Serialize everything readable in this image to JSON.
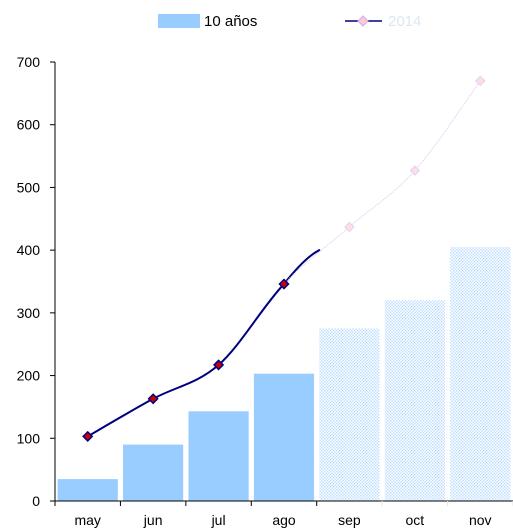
{
  "chart_data": {
    "type": "bar",
    "categories": [
      "may",
      "jun",
      "jul",
      "ago",
      "sep",
      "oct",
      "nov"
    ],
    "ylim": [
      0,
      700
    ],
    "yticks": [
      0,
      100,
      200,
      300,
      400,
      500,
      600,
      700
    ],
    "grid": false,
    "legend_position": "top",
    "series": [
      {
        "name": "10 años",
        "kind": "bar",
        "color": "#99ccff",
        "values": [
          35,
          90,
          143,
          203,
          275,
          320,
          405
        ]
      },
      {
        "name": "2014",
        "kind": "line",
        "color": "#000080",
        "marker_color": "#cc0000",
        "values": [
          103,
          163,
          217,
          346,
          437,
          527,
          670
        ]
      }
    ],
    "faded_from_category": "sep"
  }
}
